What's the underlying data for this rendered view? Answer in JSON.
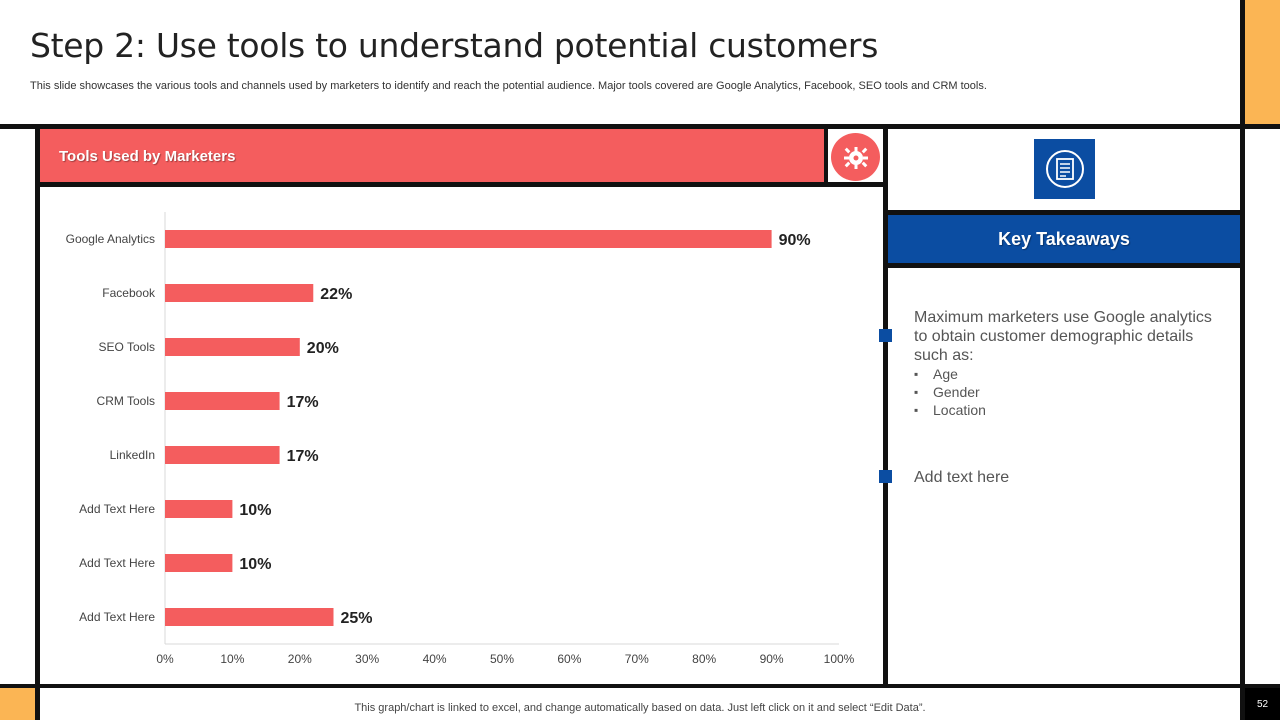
{
  "slide": {
    "title": "Step 2: Use tools to understand potential customers",
    "subtitle": "This slide showcases the various tools and channels used by marketers to identify and reach the potential audience. Major tools covered are Google Analytics, Facebook, SEO tools and CRM tools.",
    "footer_note": "This graph/chart is linked to excel, and change automatically based on data. Just left click on it and select “Edit Data”.",
    "page_number": "52"
  },
  "panel": {
    "header": "Tools Used by Marketers",
    "header_icon": "gear-bug-icon"
  },
  "takeaways": {
    "icon": "document-list-icon",
    "header": "Key Takeaways",
    "point1": "Maximum marketers use Google analytics to obtain customer demographic details such as:",
    "sub_items": [
      "Age",
      "Gender",
      "Location"
    ],
    "point2": "Add text here"
  },
  "colors": {
    "accent_red": "#F45D5E",
    "accent_blue": "#0B4DA2",
    "accent_orange": "#FBB554"
  },
  "chart_data": {
    "type": "bar",
    "orientation": "horizontal",
    "categories": [
      "Google Analytics",
      "Facebook",
      "SEO Tools",
      "CRM Tools",
      "LinkedIn",
      "Add Text Here",
      "Add Text Here",
      "Add Text Here"
    ],
    "values": [
      90,
      22,
      20,
      17,
      17,
      10,
      10,
      25
    ],
    "value_labels": [
      "90%",
      "22%",
      "20%",
      "17%",
      "17%",
      "10%",
      "10%",
      "25%"
    ],
    "xlim": [
      0,
      100
    ],
    "x_ticks": [
      0,
      10,
      20,
      30,
      40,
      50,
      60,
      70,
      80,
      90,
      100
    ],
    "x_tick_labels": [
      "0%",
      "10%",
      "20%",
      "30%",
      "40%",
      "50%",
      "60%",
      "70%",
      "80%",
      "90%",
      "100%"
    ],
    "bar_color": "#F45D5E",
    "grid": false
  }
}
